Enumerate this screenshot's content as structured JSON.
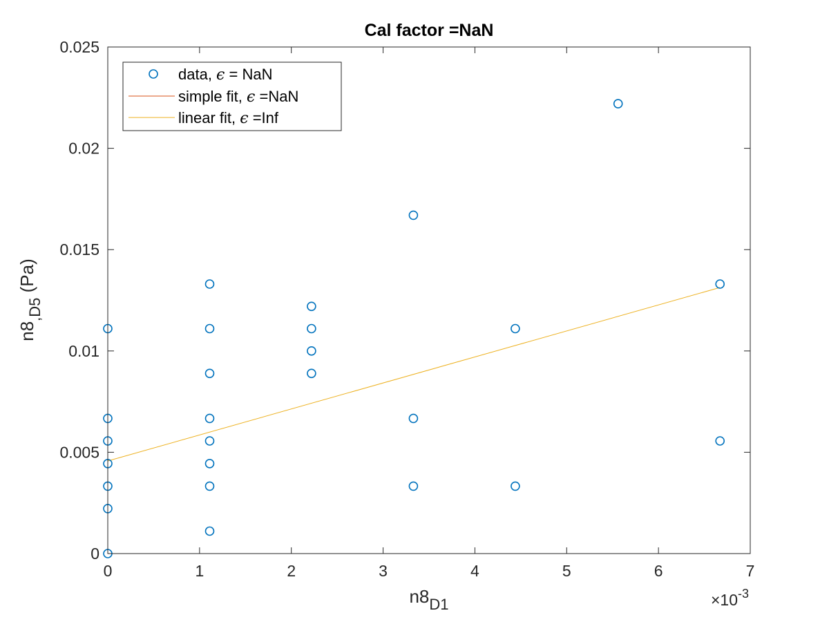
{
  "chart_data": {
    "type": "scatter",
    "title": "Cal factor =NaN",
    "xlabel": {
      "base": "n8",
      "sub": "D1"
    },
    "ylabel": {
      "base": "n8",
      "sub": ",D5",
      "unit": " (Pa)"
    },
    "xlim": [
      0,
      0.007
    ],
    "ylim": [
      0,
      0.025
    ],
    "x_exponent": {
      "prefix": "×10",
      "power": "-3"
    },
    "xticks": [
      0,
      0.001,
      0.002,
      0.003,
      0.004,
      0.005,
      0.006,
      0.007
    ],
    "xtick_labels": [
      "0",
      "1",
      "2",
      "3",
      "4",
      "5",
      "6",
      "7"
    ],
    "yticks": [
      0,
      0.005,
      0.01,
      0.015,
      0.02,
      0.025
    ],
    "ytick_labels": [
      "0",
      "0.005",
      "0.01",
      "0.015",
      "0.02",
      "0.025"
    ],
    "grid": false,
    "legend_position": "top-left",
    "colors": {
      "data": "#0072bd",
      "simple_fit": "#d95319",
      "linear_fit": "#edb120",
      "axes": "#262626"
    },
    "legend": [
      {
        "series": "data",
        "pre": "data, ",
        "eps": "ϵ",
        "post": " = NaN"
      },
      {
        "series": "simple_fit",
        "pre": "simple fit, ",
        "eps": "ϵ",
        "post": " =NaN"
      },
      {
        "series": "linear_fit",
        "pre": "linear fit, ",
        "eps": "ϵ",
        "post": " =Inf"
      }
    ],
    "series": [
      {
        "name": "data, ϵ = NaN",
        "kind": "markers",
        "points": [
          [
            0,
            0
          ],
          [
            0,
            0.00222
          ],
          [
            0,
            0.00333
          ],
          [
            0,
            0.00444
          ],
          [
            0,
            0.00556
          ],
          [
            0,
            0.00667
          ],
          [
            0,
            0.0111
          ],
          [
            0.00111,
            0.00111
          ],
          [
            0.00111,
            0.00333
          ],
          [
            0.00111,
            0.00444
          ],
          [
            0.00111,
            0.00556
          ],
          [
            0.00111,
            0.00667
          ],
          [
            0.00111,
            0.00889
          ],
          [
            0.00111,
            0.0111
          ],
          [
            0.00111,
            0.0133
          ],
          [
            0.00222,
            0.00889
          ],
          [
            0.00222,
            0.01
          ],
          [
            0.00222,
            0.0111
          ],
          [
            0.00222,
            0.0122
          ],
          [
            0.00333,
            0.00333
          ],
          [
            0.00333,
            0.00667
          ],
          [
            0.00333,
            0.0167
          ],
          [
            0.00444,
            0.00333
          ],
          [
            0.00444,
            0.0111
          ],
          [
            0.00556,
            0.0222
          ],
          [
            0.00667,
            0.00556
          ],
          [
            0.00667,
            0.0133
          ]
        ]
      },
      {
        "name": "simple fit, ϵ =NaN",
        "kind": "line",
        "points": []
      },
      {
        "name": "linear fit, ϵ =Inf",
        "kind": "line",
        "points": [
          [
            0,
            0.00457
          ],
          [
            0.00667,
            0.01313
          ]
        ]
      }
    ]
  }
}
